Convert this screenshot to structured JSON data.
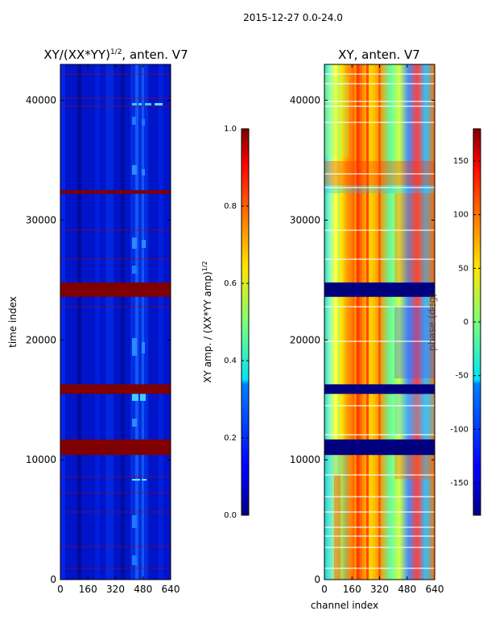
{
  "suptitle": "2015-12-27 0.0-24.0",
  "chart_data": [
    {
      "type": "heatmap",
      "title_prefix": "XY/(XX*YY)",
      "title_exponent": "1/2",
      "title_suffix": ", anten. V7",
      "xlabel": "",
      "ylabel": "time index",
      "xlim": [
        0,
        640
      ],
      "ylim": [
        0,
        43000
      ],
      "xticks": [
        "0",
        "160",
        "320",
        "480",
        "640"
      ],
      "yticks": [
        "0",
        "10000",
        "20000",
        "30000",
        "40000"
      ],
      "colormap": "jet",
      "colorbar": {
        "label_main": "XY amp. / (XX*YY amp)",
        "label_exponent": "1/2",
        "range": [
          0.0,
          1.0
        ],
        "ticks": [
          "0.0",
          "0.2",
          "0.4",
          "0.6",
          "0.8",
          "1.0"
        ]
      },
      "flagged_bands": [
        [
          10400,
          11700
        ],
        [
          15500,
          16300
        ],
        [
          23600,
          24800
        ],
        [
          32200,
          32500
        ]
      ],
      "background_value": 0.1
    },
    {
      "type": "heatmap",
      "title": "XY, anten. V7",
      "xlabel": "channel index",
      "ylabel": "",
      "xlim": [
        0,
        640
      ],
      "ylim": [
        0,
        43000
      ],
      "xticks": [
        "0",
        "160",
        "320",
        "480",
        "640"
      ],
      "yticks": [
        "0",
        "10000",
        "20000",
        "30000",
        "40000"
      ],
      "colormap": "jet",
      "colorbar": {
        "label": "phase (deg)",
        "range": [
          -180,
          180
        ],
        "ticks": [
          "-150",
          "-100",
          "-50",
          "0",
          "50",
          "100",
          "150"
        ]
      },
      "flagged_bands": [
        [
          10400,
          11700
        ],
        [
          15500,
          16300
        ],
        [
          23600,
          24800
        ]
      ]
    }
  ]
}
